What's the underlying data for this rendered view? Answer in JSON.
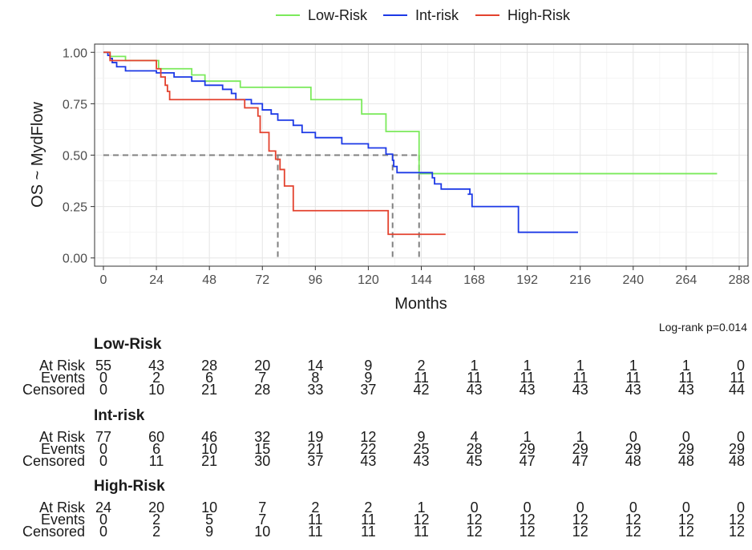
{
  "chart_data": {
    "type": "line",
    "title": "",
    "xlabel": "Months",
    "ylabel": "OS ~ MydFlow",
    "xlim": [
      -4,
      292
    ],
    "ylim": [
      -0.04,
      1.04
    ],
    "xticks": [
      0,
      24,
      48,
      72,
      96,
      120,
      144,
      168,
      192,
      216,
      240,
      264,
      288
    ],
    "yticks": [
      0.0,
      0.25,
      0.5,
      0.75,
      1.0
    ],
    "ytick_labels": [
      "0.00",
      "0.25",
      "0.50",
      "0.75",
      "1.00"
    ],
    "grid": true,
    "legend_position": "top",
    "pvalue_text": "Log-rank p=0.014",
    "series": [
      {
        "name": "Low-Risk",
        "color": "#7BEA5B",
        "steps": [
          [
            0,
            1.0
          ],
          [
            3,
            0.98
          ],
          [
            10,
            0.96
          ],
          [
            25,
            0.92
          ],
          [
            40,
            0.89
          ],
          [
            46,
            0.86
          ],
          [
            62,
            0.83
          ],
          [
            94,
            0.77
          ],
          [
            117,
            0.7
          ],
          [
            128,
            0.615
          ],
          [
            143,
            0.41
          ],
          [
            278,
            0.41
          ]
        ]
      },
      {
        "name": "Int-risk",
        "color": "#1C39E6",
        "steps": [
          [
            0,
            1.0
          ],
          [
            2,
            0.985
          ],
          [
            3,
            0.97
          ],
          [
            4,
            0.95
          ],
          [
            6,
            0.93
          ],
          [
            10,
            0.91
          ],
          [
            24,
            0.9
          ],
          [
            32,
            0.88
          ],
          [
            40,
            0.86
          ],
          [
            46,
            0.84
          ],
          [
            54,
            0.82
          ],
          [
            58,
            0.8
          ],
          [
            60,
            0.77
          ],
          [
            67,
            0.75
          ],
          [
            72,
            0.72
          ],
          [
            76,
            0.7
          ],
          [
            79,
            0.67
          ],
          [
            86,
            0.645
          ],
          [
            90,
            0.61
          ],
          [
            96,
            0.585
          ],
          [
            108,
            0.555
          ],
          [
            120,
            0.535
          ],
          [
            128,
            0.505
          ],
          [
            131,
            0.475
          ],
          [
            131.5,
            0.445
          ],
          [
            133,
            0.415
          ],
          [
            149,
            0.39
          ],
          [
            150,
            0.36
          ],
          [
            153,
            0.335
          ],
          [
            166,
            0.31
          ],
          [
            165,
            0.31
          ],
          [
            167,
            0.25
          ],
          [
            187,
            0.25
          ],
          [
            188,
            0.125
          ],
          [
            215,
            0.125
          ]
        ]
      },
      {
        "name": "High-Risk",
        "color": "#E3422E",
        "steps": [
          [
            0,
            1.0
          ],
          [
            3,
            0.96
          ],
          [
            24,
            0.92
          ],
          [
            26,
            0.88
          ],
          [
            28,
            0.84
          ],
          [
            29,
            0.81
          ],
          [
            30,
            0.77
          ],
          [
            64,
            0.73
          ],
          [
            70,
            0.69
          ],
          [
            71,
            0.61
          ],
          [
            75,
            0.52
          ],
          [
            78,
            0.48
          ],
          [
            80,
            0.43
          ],
          [
            82,
            0.35
          ],
          [
            86,
            0.23
          ],
          [
            129,
            0.115
          ],
          [
            155,
            0.115
          ]
        ]
      }
    ],
    "median_lines": [
      {
        "x": 79,
        "y": 0.5
      },
      {
        "x": 131,
        "y": 0.5
      },
      {
        "x": 143,
        "y": 0.5
      }
    ],
    "risk_table": {
      "times": [
        0,
        24,
        48,
        72,
        96,
        120,
        144,
        168,
        192,
        216,
        240,
        264,
        288
      ],
      "row_labels": [
        "At Risk",
        "Events",
        "Censored"
      ],
      "groups": [
        {
          "name": "Low-Risk",
          "at_risk": [
            "55",
            "43",
            "28",
            "20",
            "14",
            "9",
            "2",
            "1",
            "1",
            "1",
            "1",
            "1",
            "0"
          ],
          "events": [
            "0",
            "2",
            "6",
            "7",
            "8",
            "9",
            "11",
            "11",
            "11",
            "11",
            "11",
            "11",
            "11"
          ],
          "censored": [
            "0",
            "10",
            "21",
            "28",
            "33",
            "37",
            "42",
            "43",
            "43",
            "43",
            "43",
            "43",
            "44"
          ]
        },
        {
          "name": "Int-risk",
          "at_risk": [
            "77",
            "60",
            "46",
            "32",
            "19",
            "12",
            "9",
            "4",
            "1",
            "1",
            "0",
            "0",
            "0"
          ],
          "events": [
            "0",
            "6",
            "10",
            "15",
            "21",
            "22",
            "25",
            "28",
            "29",
            "29",
            "29",
            "29",
            "29"
          ],
          "censored": [
            "0",
            "11",
            "21",
            "30",
            "37",
            "43",
            "43",
            "45",
            "47",
            "47",
            "48",
            "48",
            "48"
          ]
        },
        {
          "name": "High-Risk",
          "at_risk": [
            "24",
            "20",
            "10",
            "7",
            "2",
            "2",
            "1",
            "0",
            "0",
            "0",
            "0",
            "0",
            "0"
          ],
          "events": [
            "0",
            "2",
            "5",
            "7",
            "11",
            "11",
            "12",
            "12",
            "12",
            "12",
            "12",
            "12",
            "12"
          ],
          "censored": [
            "0",
            "2",
            "9",
            "10",
            "11",
            "11",
            "11",
            "12",
            "12",
            "12",
            "12",
            "12",
            "12"
          ]
        }
      ]
    }
  }
}
